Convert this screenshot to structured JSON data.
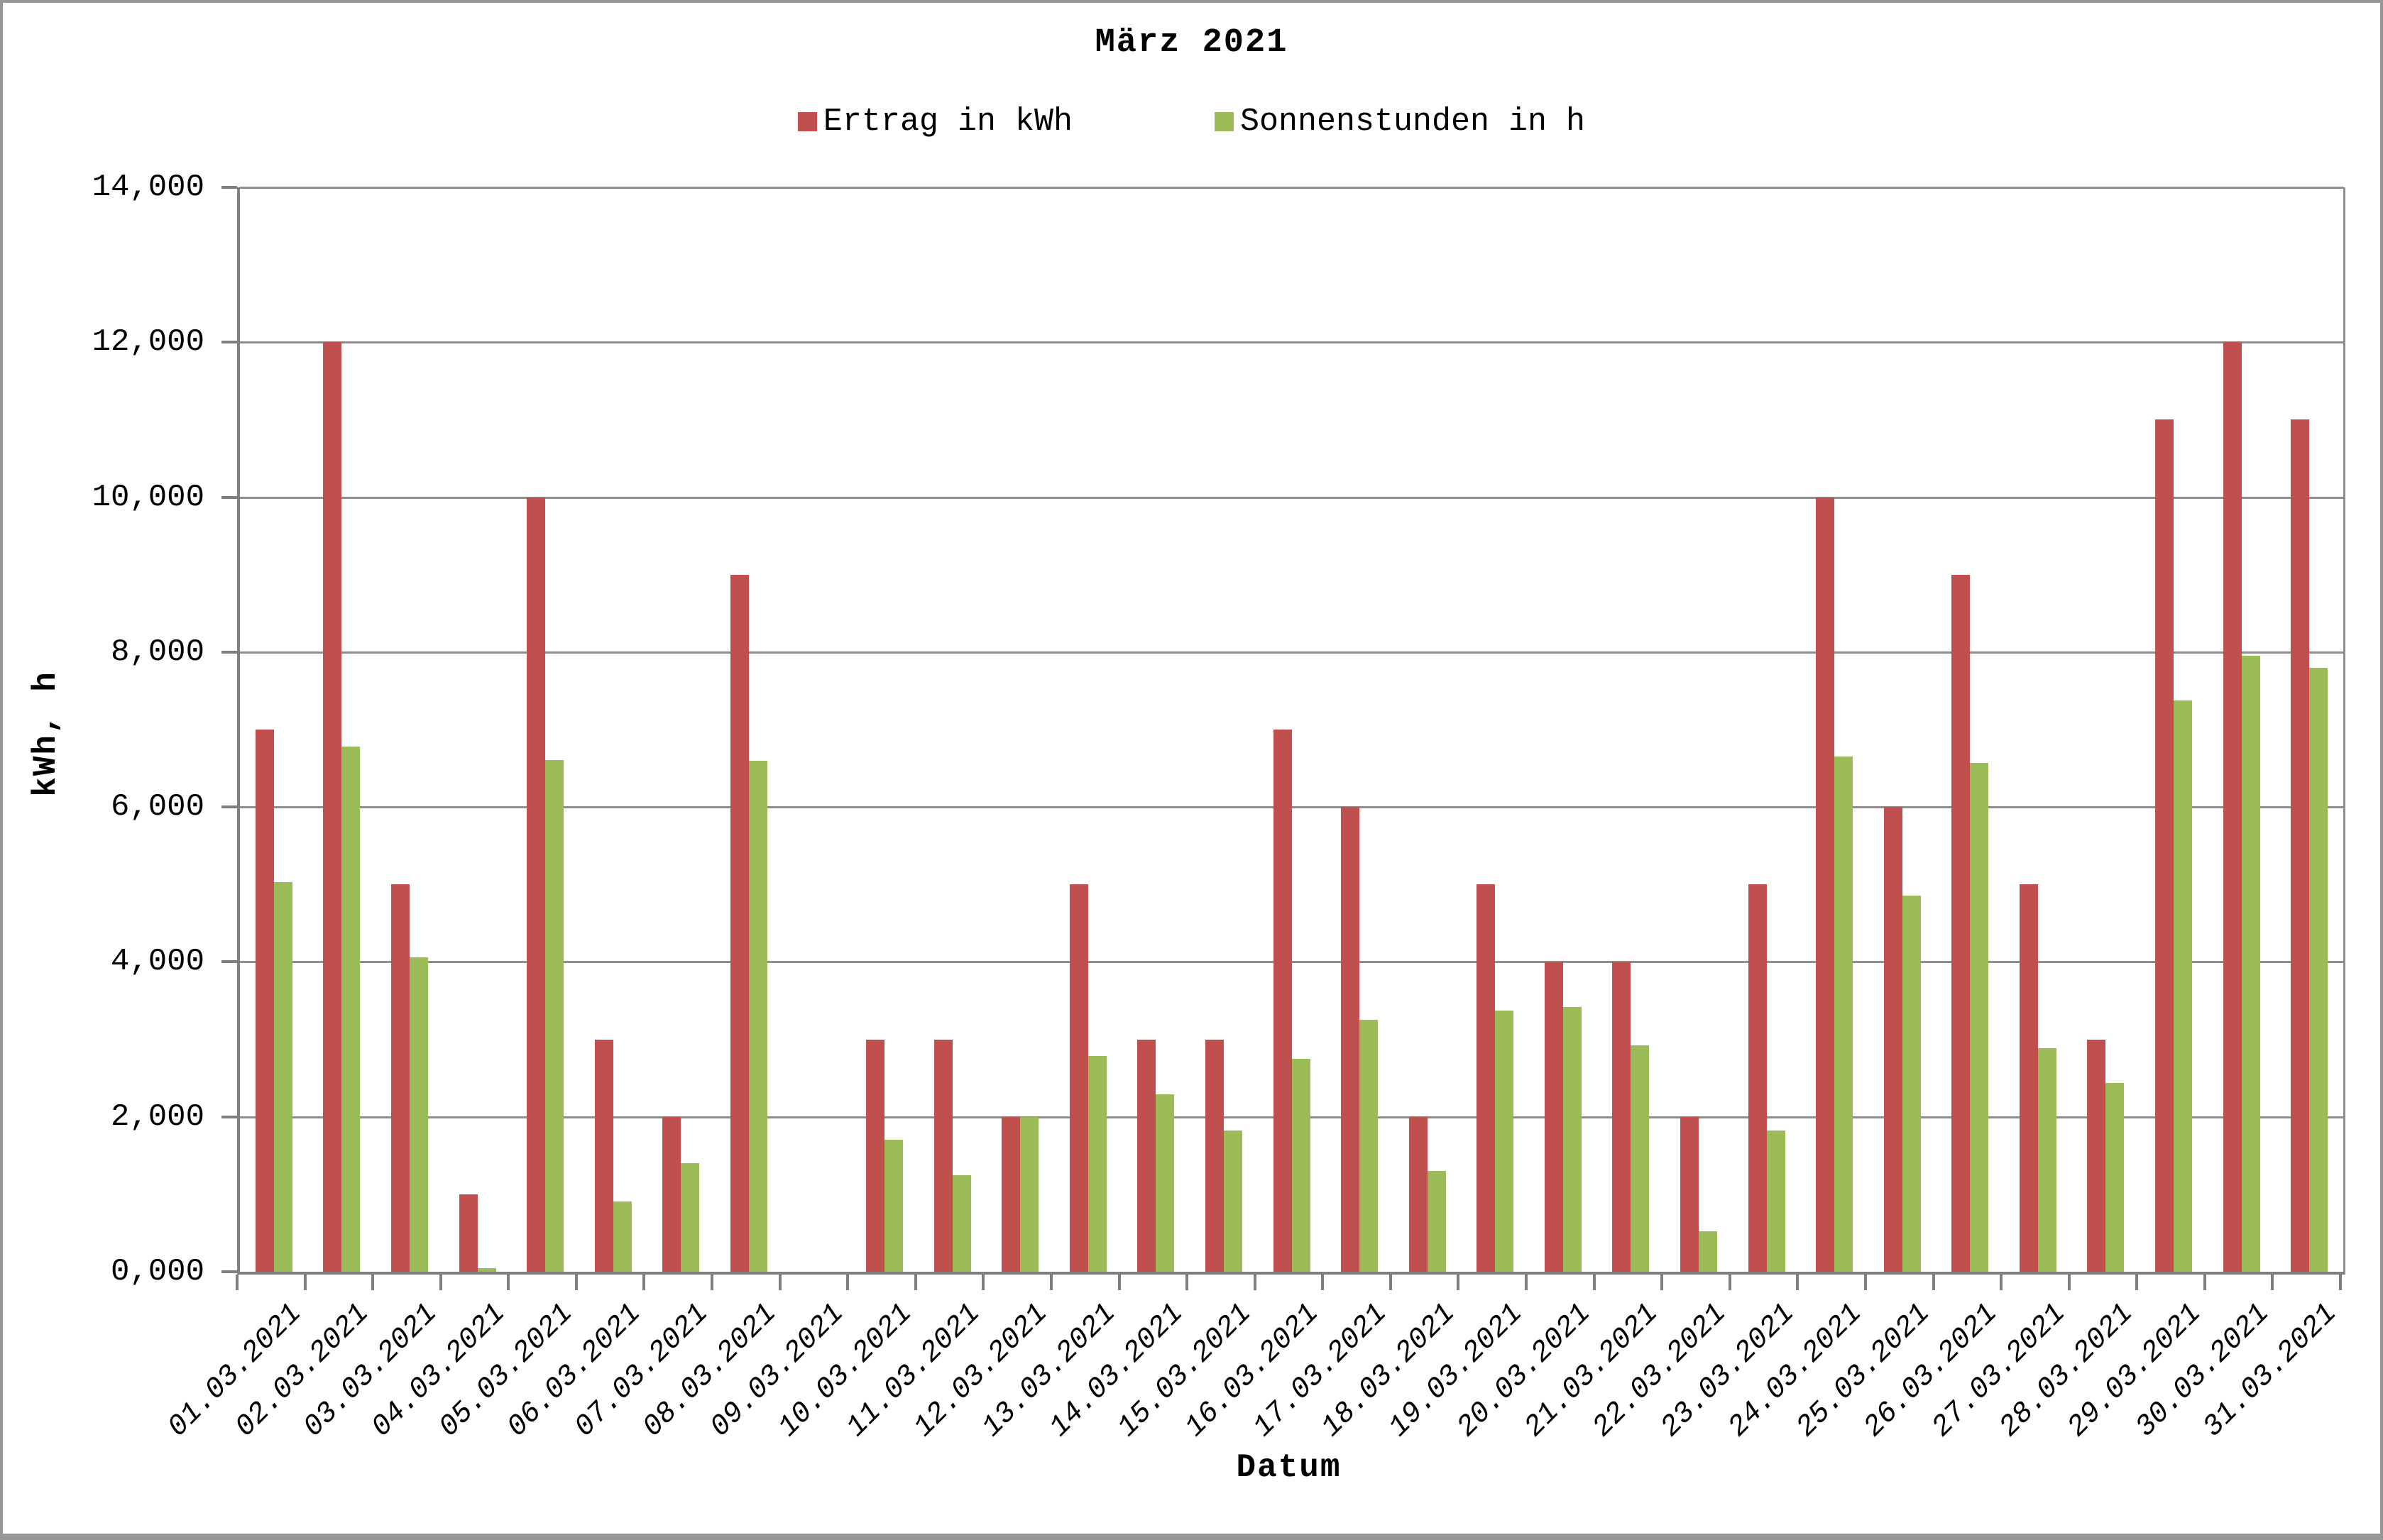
{
  "chart_data": {
    "type": "bar",
    "title": "März 2021",
    "x_axis_title": "Datum",
    "y_axis_title": "kWh, h",
    "legend_position": "top",
    "grid": "horizontal",
    "ylim": [
      0,
      14000
    ],
    "y_tick_values": [
      0,
      2000,
      4000,
      6000,
      8000,
      10000,
      12000,
      14000
    ],
    "y_tick_labels": [
      "0,000",
      "2,000",
      "4,000",
      "6,000",
      "8,000",
      "10,000",
      "12,000",
      "14,000"
    ],
    "categories": [
      "01.03.2021",
      "02.03.2021",
      "03.03.2021",
      "04.03.2021",
      "05.03.2021",
      "06.03.2021",
      "07.03.2021",
      "08.03.2021",
      "09.03.2021",
      "10.03.2021",
      "11.03.2021",
      "12.03.2021",
      "13.03.2021",
      "14.03.2021",
      "15.03.2021",
      "16.03.2021",
      "17.03.2021",
      "18.03.2021",
      "19.03.2021",
      "20.03.2021",
      "21.03.2021",
      "22.03.2021",
      "23.03.2021",
      "24.03.2021",
      "25.03.2021",
      "26.03.2021",
      "27.03.2021",
      "28.03.2021",
      "29.03.2021",
      "30.03.2021",
      "31.03.2021"
    ],
    "series": [
      {
        "name": "Ertrag in kWh",
        "color": "#C0504D",
        "values": [
          7000,
          12000,
          5000,
          1000,
          10000,
          3000,
          2000,
          9000,
          0,
          3000,
          3000,
          2000,
          5000,
          3000,
          3000,
          7000,
          6000,
          2000,
          5000,
          4000,
          4000,
          2000,
          5000,
          10000,
          6000,
          9000,
          5000,
          3000,
          11000,
          12000,
          11000
        ]
      },
      {
        "name": "Sonnenstunden in h",
        "color": "#9BBB59",
        "values": [
          5030,
          6780,
          4060,
          50,
          6610,
          910,
          1400,
          6600,
          0,
          1700,
          1250,
          2000,
          2790,
          2290,
          1820,
          2750,
          3250,
          1300,
          3370,
          3420,
          2920,
          520,
          1820,
          6650,
          4860,
          6570,
          2890,
          2440,
          7380,
          7950,
          7800
        ]
      }
    ],
    "axis_color": "#7f7f7f",
    "gridline_color": "#8e8e8e"
  }
}
